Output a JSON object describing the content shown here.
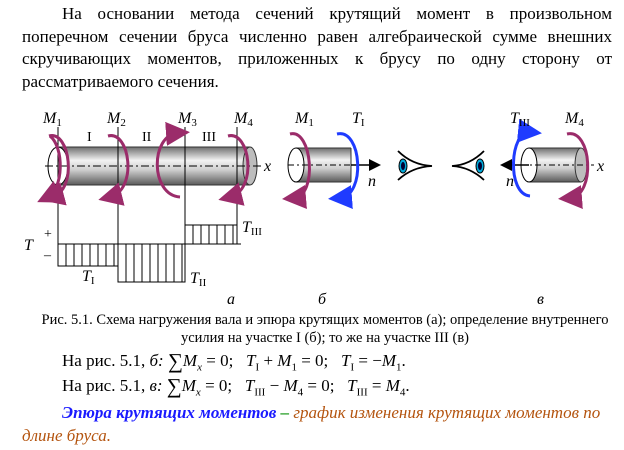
{
  "intro_paragraph": "На основании метода сечений крутящий момент в произвольном поперечном сечении бруса численно равен алгебраической сумме внешних скручивающих моментов, приложенных к брусу по одну сторону от рассматриваемого сечения.",
  "figure": {
    "a": {
      "moments": [
        "M",
        "M",
        "M",
        "M"
      ],
      "moment_subs": [
        "1",
        "2",
        "3",
        "4"
      ],
      "sections": [
        "I",
        "II",
        "III"
      ],
      "axis": "x",
      "diagram_axis": "T",
      "plus": "+",
      "minus": "–",
      "T_labels": [
        "T",
        "T",
        "T"
      ],
      "T_subs": [
        "I",
        "II",
        "III"
      ]
    },
    "b": {
      "moment": "M",
      "moment_sub": "1",
      "force": "T",
      "force_sub": "I",
      "normal": "n"
    },
    "v": {
      "moment": "M",
      "moment_sub": "4",
      "force": "T",
      "force_sub": "III",
      "normal": "n",
      "axis": "x"
    },
    "sublabels": [
      "а",
      "б",
      "в"
    ],
    "colors": {
      "external_moment": "#9b2c6a",
      "internal_force": "#1f3bff",
      "eye_iris": "#00a8d8"
    }
  },
  "caption": "Рис. 5.1. Схема нагружения вала и эпюра крутящих моментов (а); определение внутреннего усилия на участке I (б); то же на участке III (в)",
  "equations": [
    {
      "prefix": "На рис. 5.1, ",
      "fig": "б:",
      "sum": "∑",
      "text1": "M",
      "sub1": "x",
      "rest1": " = 0;   ",
      "t": "T",
      "tsub": "I",
      "rest2": " + ",
      "m": "M",
      "msub": "1",
      "rest3": " = 0;   ",
      "t2": "T",
      "t2sub": "I",
      "rest4": " = −",
      "m2": "M",
      "m2sub": "1",
      "end": "."
    },
    {
      "prefix": "На рис. 5.1, ",
      "fig": "в:",
      "sum": "∑",
      "text1": "M",
      "sub1": "x",
      "rest1": " = 0;   ",
      "t": "T",
      "tsub": "III",
      "rest2": " − ",
      "m": "M",
      "msub": "4",
      "rest3": " = 0;   ",
      "t2": "T",
      "t2sub": "III",
      "rest4": " = ",
      "m2": "M",
      "m2sub": "4",
      "end": "."
    }
  ],
  "definition": {
    "term": "Эпюра крутящих моментов",
    "dash": " – ",
    "text": "график изменения крутящих моментов по длине бруса."
  }
}
